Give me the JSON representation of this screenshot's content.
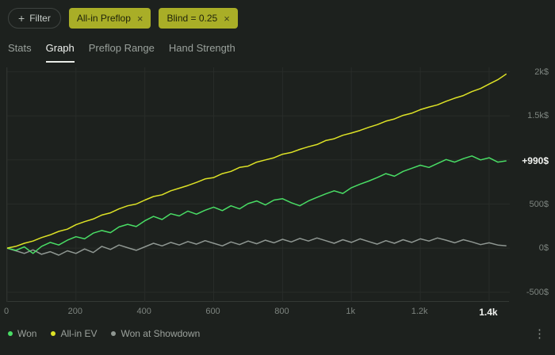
{
  "filter_bar": {
    "filter_button": {
      "label": "Filter",
      "icon_glyph": "+"
    },
    "tag_color": "#a9ae27",
    "tags": [
      {
        "label": "All-in Preflop",
        "close_glyph": "×"
      },
      {
        "label": "Blind = 0.25",
        "close_glyph": "×"
      }
    ]
  },
  "tabs": [
    {
      "label": "Stats",
      "active": false
    },
    {
      "label": "Graph",
      "active": true
    },
    {
      "label": "Preflop Range",
      "active": false
    },
    {
      "label": "Hand Strength",
      "active": false
    }
  ],
  "chart_data": {
    "type": "line",
    "x_range": [
      0,
      1460
    ],
    "y_range": [
      -610,
      2050
    ],
    "x_gridlines": [
      0,
      200,
      400,
      600,
      800,
      1000,
      1200,
      1400
    ],
    "y_gridlines": [
      -500,
      0,
      500,
      1000,
      1500,
      2000
    ],
    "x_ticks": [
      {
        "text": "0",
        "value": 0,
        "highlight": false
      },
      {
        "text": "200",
        "value": 200,
        "highlight": false
      },
      {
        "text": "400",
        "value": 400,
        "highlight": false
      },
      {
        "text": "600",
        "value": 600,
        "highlight": false
      },
      {
        "text": "800",
        "value": 800,
        "highlight": false
      },
      {
        "text": "1k",
        "value": 1000,
        "highlight": false
      },
      {
        "text": "1.2k",
        "value": 1200,
        "highlight": false
      },
      {
        "text": "1.4k",
        "value": 1400,
        "highlight": true
      }
    ],
    "y_ticks": [
      {
        "text": "2k$",
        "value": 2000,
        "highlight": false
      },
      {
        "text": "1.5k$",
        "value": 1500,
        "highlight": false
      },
      {
        "text": "+990$",
        "value": 990,
        "highlight": true
      },
      {
        "text": "500$",
        "value": 500,
        "highlight": false
      },
      {
        "text": "0$",
        "value": 0,
        "highlight": false
      },
      {
        "text": "-500$",
        "value": -500,
        "highlight": false
      }
    ],
    "x": [
      0,
      25,
      50,
      75,
      100,
      125,
      150,
      175,
      200,
      225,
      250,
      275,
      300,
      325,
      350,
      375,
      400,
      425,
      450,
      475,
      500,
      525,
      550,
      575,
      600,
      625,
      650,
      675,
      700,
      725,
      750,
      775,
      800,
      825,
      850,
      875,
      900,
      925,
      950,
      975,
      1000,
      1025,
      1050,
      1075,
      1100,
      1125,
      1150,
      1175,
      1200,
      1225,
      1250,
      1275,
      1300,
      1325,
      1350,
      1375,
      1400,
      1425,
      1450
    ],
    "series": [
      {
        "name": "Won at Showdown",
        "color": "#8f9792",
        "values": [
          0,
          -30,
          -60,
          -20,
          -70,
          -40,
          -80,
          -30,
          -60,
          -10,
          -50,
          20,
          -15,
          35,
          5,
          -25,
          15,
          55,
          25,
          65,
          35,
          75,
          45,
          85,
          55,
          25,
          70,
          40,
          80,
          50,
          90,
          60,
          100,
          70,
          110,
          80,
          115,
          85,
          55,
          95,
          65,
          105,
          75,
          45,
          85,
          55,
          95,
          65,
          105,
          80,
          115,
          90,
          60,
          95,
          70,
          40,
          60,
          35,
          25
        ]
      },
      {
        "name": "Won",
        "color": "#49dd65",
        "values": [
          0,
          -25,
          15,
          -60,
          20,
          65,
          35,
          90,
          130,
          105,
          170,
          200,
          175,
          240,
          270,
          245,
          310,
          360,
          325,
          390,
          365,
          420,
          385,
          430,
          465,
          425,
          480,
          445,
          505,
          535,
          490,
          545,
          560,
          515,
          480,
          535,
          575,
          615,
          650,
          620,
          685,
          725,
          760,
          800,
          845,
          815,
          870,
          905,
          940,
          915,
          960,
          1005,
          975,
          1015,
          1045,
          1000,
          1025,
          975,
          990
        ]
      },
      {
        "name": "All-in EV",
        "color": "#dde226",
        "values": [
          0,
          20,
          55,
          80,
          120,
          150,
          190,
          215,
          265,
          300,
          330,
          375,
          400,
          445,
          480,
          500,
          545,
          585,
          605,
          650,
          680,
          710,
          745,
          785,
          800,
          845,
          870,
          915,
          930,
          975,
          1000,
          1025,
          1065,
          1085,
          1120,
          1150,
          1175,
          1220,
          1240,
          1280,
          1305,
          1335,
          1370,
          1400,
          1440,
          1465,
          1505,
          1530,
          1570,
          1600,
          1625,
          1665,
          1700,
          1730,
          1775,
          1810,
          1860,
          1910,
          1975
        ]
      }
    ]
  },
  "legend": {
    "items": [
      {
        "label": "Won",
        "color": "#49dd65"
      },
      {
        "label": "All-in EV",
        "color": "#dde226"
      },
      {
        "label": "Won at Showdown",
        "color": "#8f9792"
      }
    ],
    "menu_icon_glyph": "⋮"
  }
}
